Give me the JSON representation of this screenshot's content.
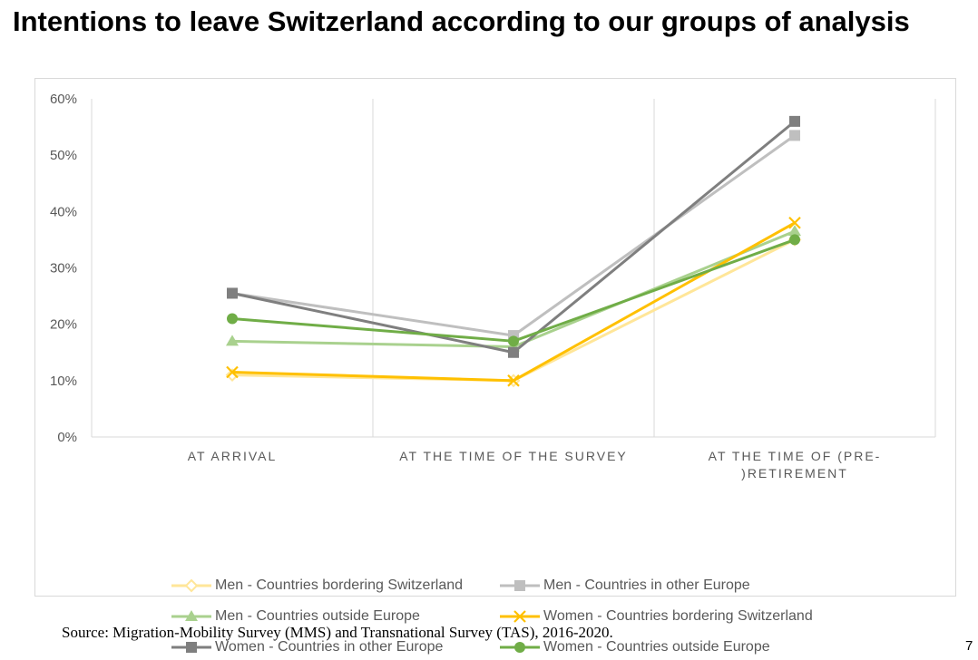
{
  "slide": {
    "title": "Intentions to leave Switzerland according to our groups of analysis",
    "source": "Source: Migration-Mobility Survey (MMS) and Transnational Survey (TAS), 2016-2020.",
    "page_number": "7"
  },
  "chart_data": {
    "type": "line",
    "title": "",
    "xlabel": "",
    "ylabel": "",
    "categories": [
      "AT ARRIVAL",
      "AT THE TIME OF THE SURVEY",
      "AT THE TIME OF (PRE-)RETIREMENT"
    ],
    "category_label_lines": [
      [
        "AT ARRIVAL"
      ],
      [
        "AT THE TIME OF THE SURVEY"
      ],
      [
        "AT THE TIME OF (PRE-",
        ")RETIREMENT"
      ]
    ],
    "ylim": [
      0,
      60
    ],
    "yticks": [
      0,
      10,
      20,
      30,
      40,
      50,
      60
    ],
    "ytick_labels": [
      "0%",
      "10%",
      "20%",
      "30%",
      "40%",
      "50%",
      "60%"
    ],
    "grid": "vertical separators between categories",
    "legend_position": "bottom",
    "series": [
      {
        "name": "Men - Countries bordering Switzerland",
        "values": [
          11,
          10,
          35
        ],
        "color": "#ffe699",
        "marker": "diamond"
      },
      {
        "name": "Men - Countries in other Europe",
        "values": [
          25.5,
          18,
          53.5
        ],
        "color": "#bfbfbf",
        "marker": "square"
      },
      {
        "name": "Men - Countries outside Europe",
        "values": [
          17,
          16,
          36.5
        ],
        "color": "#a9d18e",
        "marker": "triangle"
      },
      {
        "name": "Women - Countries bordering Switzerland",
        "values": [
          11.5,
          10,
          38
        ],
        "color": "#ffc000",
        "marker": "x"
      },
      {
        "name": "Women - Countries in other Europe",
        "values": [
          25.5,
          15,
          56
        ],
        "color": "#7f7f7f",
        "marker": "square"
      },
      {
        "name": "Women - Countries outside Europe",
        "values": [
          21,
          17,
          35
        ],
        "color": "#70ad47",
        "marker": "circle"
      }
    ]
  }
}
